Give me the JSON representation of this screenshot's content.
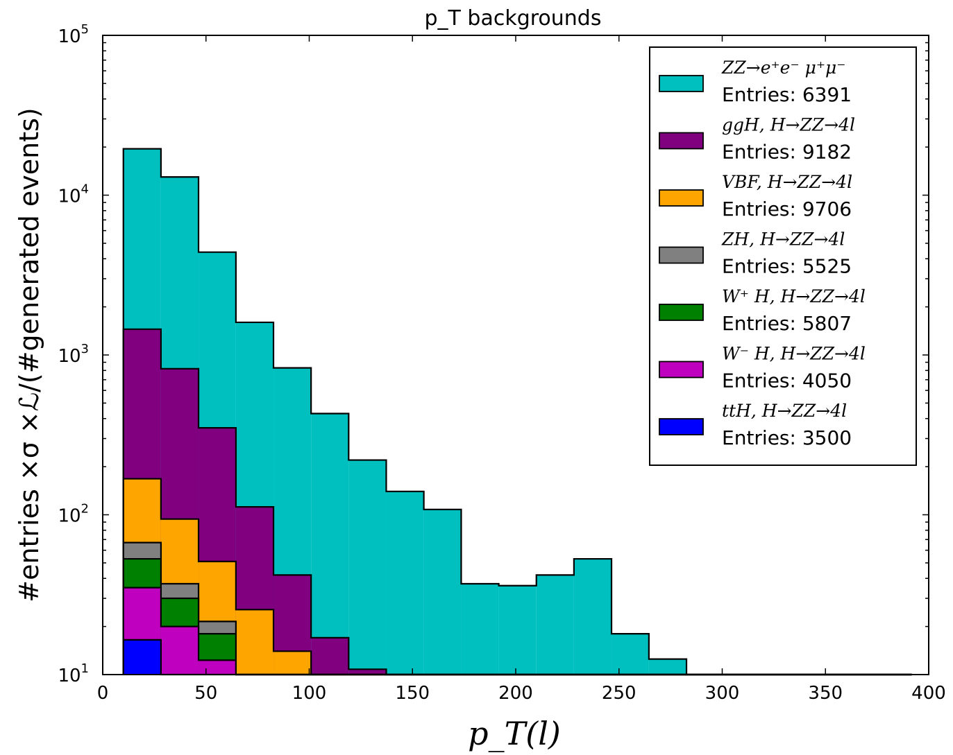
{
  "chart_data": {
    "type": "bar",
    "histtype": "stepfilled-stacked",
    "title": "p_T backgrounds",
    "xlabel": "p_T(l)",
    "ylabel": "#entries ×σ ×ℒ/(#generated events)",
    "xlim": [
      0,
      400
    ],
    "ylim": [
      10,
      100000
    ],
    "yscale": "log",
    "grid": false,
    "legend_position": "top-right",
    "xticks": [
      0,
      50,
      100,
      150,
      200,
      250,
      300,
      350,
      400
    ],
    "xtick_labels": [
      "0",
      "50",
      "100",
      "150",
      "200",
      "250",
      "300",
      "350",
      "400"
    ],
    "yticks": [
      10,
      100,
      1000,
      10000,
      100000
    ],
    "ytick_labels": [
      {
        "base": "10",
        "exp": "1"
      },
      {
        "base": "10",
        "exp": "2"
      },
      {
        "base": "10",
        "exp": "3"
      },
      {
        "base": "10",
        "exp": "4"
      },
      {
        "base": "10",
        "exp": "5"
      }
    ],
    "bin_edges": [
      10,
      28.2,
      46.4,
      64.5,
      82.7,
      100.9,
      119.1,
      137.3,
      155.5,
      173.6,
      191.8,
      210,
      228.2,
      246.4,
      264.5,
      282.7,
      300.9,
      319.1,
      337.3,
      355.5,
      373.6,
      391.8
    ],
    "series": [
      {
        "name": "ttH, H→ZZ→4l",
        "entries_label": "Entries: 3500",
        "color": "#0000ff",
        "cumulative": [
          16.5,
          8,
          5,
          4,
          3,
          2,
          0,
          0,
          0,
          0,
          0,
          0,
          0,
          0,
          0,
          0,
          0,
          0,
          0,
          0,
          0
        ]
      },
      {
        "name": "W⁻ H, H→ZZ→4l",
        "entries_label": "Entries: 4050",
        "color": "#bf00bf",
        "cumulative": [
          35,
          20,
          12.3,
          5,
          3,
          2,
          0,
          0,
          0,
          0,
          0,
          0,
          0,
          0,
          0,
          0,
          0,
          0,
          0,
          0,
          0
        ]
      },
      {
        "name": "W⁺ H, H→ZZ→4l",
        "entries_label": "Entries: 5807",
        "color": "#008000",
        "cumulative": [
          53,
          30,
          18,
          6,
          3,
          2,
          0,
          0,
          0,
          0,
          0,
          0,
          0,
          0,
          0,
          0,
          0,
          0,
          0,
          0,
          0
        ]
      },
      {
        "name": "ZH, H→ZZ→4l",
        "entries_label": "Entries: 5525",
        "color": "#808080",
        "cumulative": [
          67,
          37,
          21.5,
          7,
          3,
          2,
          0,
          0,
          0,
          0,
          0,
          0,
          0,
          0,
          0,
          0,
          0,
          0,
          0,
          0,
          0
        ]
      },
      {
        "name": "VBF, H→ZZ→4l",
        "entries_label": "Entries: 9706",
        "color": "#ffa500",
        "cumulative": [
          168,
          94,
          51,
          25.5,
          14,
          3,
          0,
          0,
          0,
          0,
          0,
          0,
          0,
          0,
          0,
          0,
          0,
          0,
          0,
          0,
          0
        ]
      },
      {
        "name": "ggH, H→ZZ→4l",
        "entries_label": "Entries: 9182",
        "color": "#800080",
        "cumulative": [
          1450,
          820,
          350,
          112,
          42,
          17,
          10.8,
          5,
          3,
          2,
          0,
          0,
          0,
          0,
          0,
          0,
          0,
          0,
          0,
          0,
          0
        ]
      },
      {
        "name": "ZZ→e⁺e⁻ μ⁺μ⁻",
        "entries_label": "Entries: 6391",
        "color": "#00bfbf",
        "cumulative": [
          19500,
          13000,
          4400,
          1600,
          830,
          430,
          220,
          140,
          108,
          37,
          36,
          42,
          53,
          18,
          12.5,
          0,
          0,
          0,
          0,
          0,
          0
        ]
      }
    ],
    "legend": [
      {
        "label": "ZZ→e⁺e⁻ μ⁺μ⁻",
        "entries": "Entries: 6391",
        "color": "#00bfbf"
      },
      {
        "label": "ggH, H→ZZ→4l",
        "entries": "Entries: 9182",
        "color": "#800080"
      },
      {
        "label": "VBF, H→ZZ→4l",
        "entries": "Entries: 9706",
        "color": "#ffa500"
      },
      {
        "label": "ZH, H→ZZ→4l",
        "entries": "Entries: 5525",
        "color": "#808080"
      },
      {
        "label": "W⁺ H, H→ZZ→4l",
        "entries": "Entries: 5807",
        "color": "#008000"
      },
      {
        "label": "W⁻ H, H→ZZ→4l",
        "entries": "Entries: 4050",
        "color": "#bf00bf"
      },
      {
        "label": "ttH, H→ZZ→4l",
        "entries": "Entries: 3500",
        "color": "#0000ff"
      }
    ]
  }
}
